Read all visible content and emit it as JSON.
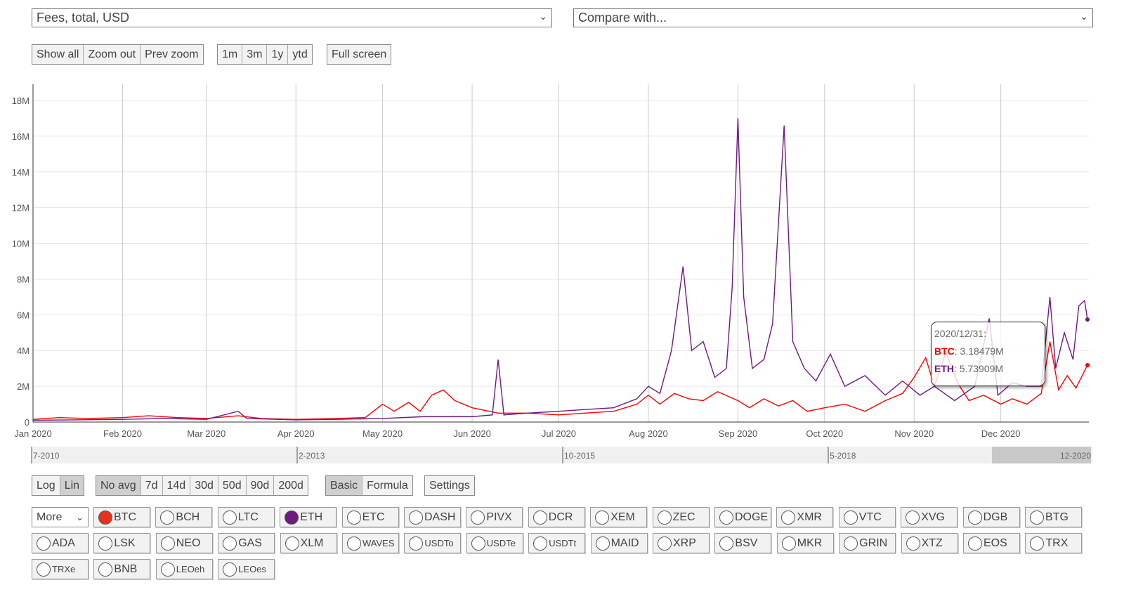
{
  "metric_select": {
    "value": "Fees, total, USD"
  },
  "compare_select": {
    "placeholder": "Compare with..."
  },
  "zoom_buttons": [
    "Show all",
    "Zoom out",
    "Prev zoom"
  ],
  "range_buttons": [
    "1m",
    "3m",
    "1y",
    "ytd"
  ],
  "fullscreen_label": "Full screen",
  "scale_buttons": [
    {
      "label": "Log",
      "active": false
    },
    {
      "label": "Lin",
      "active": true
    }
  ],
  "avg_buttons": [
    {
      "label": "No avg",
      "active": true
    },
    {
      "label": "7d"
    },
    {
      "label": "14d"
    },
    {
      "label": "30d"
    },
    {
      "label": "50d"
    },
    {
      "label": "90d"
    },
    {
      "label": "200d"
    }
  ],
  "mode_buttons": [
    {
      "label": "Basic",
      "active": true
    },
    {
      "label": "Formula"
    }
  ],
  "settings_label": "Settings",
  "more_select": "More",
  "coins": [
    [
      "BTC",
      "BCH",
      "LTC",
      "ETH",
      "ETC",
      "DASH",
      "PIVX",
      "DCR",
      "XEM",
      "ZEC",
      "DOGE",
      "XMR",
      "VTC",
      "XVG",
      "DGB",
      "BTG"
    ],
    [
      "ADA",
      "LSK",
      "NEO",
      "GAS",
      "XLM",
      "WAVES",
      "USDTo",
      "USDTe",
      "USDTt",
      "MAID",
      "XRP",
      "BSV",
      "MKR",
      "GRIN",
      "XTZ",
      "EOS",
      "TRX"
    ],
    [
      "TRXe",
      "BNB",
      "LEOeh",
      "LEOes"
    ]
  ],
  "selected_coins": {
    "BTC": "#e8321e",
    "ETH": "#6f1a7f"
  },
  "navigator": {
    "labels": [
      "7-2010",
      "2-2013",
      "10-2015",
      "5-2018",
      "12-2020"
    ]
  },
  "tooltip": {
    "date": "2020/12/31:",
    "btc_label": "BTC",
    "btc_value": ": 3.18479M",
    "eth_label": "ETH",
    "eth_value": ": 5.73909M"
  },
  "chart_data": {
    "type": "line",
    "title": "",
    "xlabel": "",
    "ylabel": "",
    "ylim": [
      0,
      18000000
    ],
    "yticks": [
      "0",
      "2M",
      "4M",
      "6M",
      "8M",
      "10M",
      "12M",
      "14M",
      "16M",
      "18M"
    ],
    "xticks": [
      "Jan 2020",
      "Feb 2020",
      "Mar 2020",
      "Apr 2020",
      "May 2020",
      "Jun 2020",
      "Jul 2020",
      "Aug 2020",
      "Sep 2020",
      "Oct 2020",
      "Nov 2020",
      "Dec 2020"
    ],
    "xlim": [
      "2020-01-01",
      "2020-12-31"
    ],
    "grid": true,
    "series": [
      {
        "name": "BTC",
        "color": "#ff0000",
        "points": [
          [
            "2020-01-01",
            0.15
          ],
          [
            "2020-01-10",
            0.25
          ],
          [
            "2020-01-20",
            0.2
          ],
          [
            "2020-02-01",
            0.25
          ],
          [
            "2020-02-10",
            0.35
          ],
          [
            "2020-02-20",
            0.25
          ],
          [
            "2020-03-01",
            0.2
          ],
          [
            "2020-03-12",
            0.35
          ],
          [
            "2020-03-20",
            0.2
          ],
          [
            "2020-04-01",
            0.15
          ],
          [
            "2020-04-15",
            0.2
          ],
          [
            "2020-04-25",
            0.25
          ],
          [
            "2020-05-01",
            1.0
          ],
          [
            "2020-05-05",
            0.6
          ],
          [
            "2020-05-10",
            1.1
          ],
          [
            "2020-05-14",
            0.6
          ],
          [
            "2020-05-18",
            1.5
          ],
          [
            "2020-05-22",
            1.8
          ],
          [
            "2020-05-26",
            1.2
          ],
          [
            "2020-06-01",
            0.8
          ],
          [
            "2020-06-10",
            0.5
          ],
          [
            "2020-06-20",
            0.5
          ],
          [
            "2020-07-01",
            0.4
          ],
          [
            "2020-07-10",
            0.5
          ],
          [
            "2020-07-20",
            0.6
          ],
          [
            "2020-07-28",
            1.0
          ],
          [
            "2020-08-01",
            1.5
          ],
          [
            "2020-08-05",
            1.0
          ],
          [
            "2020-08-10",
            1.6
          ],
          [
            "2020-08-15",
            1.3
          ],
          [
            "2020-08-20",
            1.2
          ],
          [
            "2020-08-25",
            1.7
          ],
          [
            "2020-09-01",
            1.2
          ],
          [
            "2020-09-05",
            0.8
          ],
          [
            "2020-09-10",
            1.3
          ],
          [
            "2020-09-15",
            0.9
          ],
          [
            "2020-09-20",
            1.2
          ],
          [
            "2020-09-25",
            0.6
          ],
          [
            "2020-10-01",
            0.8
          ],
          [
            "2020-10-08",
            1.0
          ],
          [
            "2020-10-15",
            0.6
          ],
          [
            "2020-10-22",
            1.2
          ],
          [
            "2020-10-28",
            1.6
          ],
          [
            "2020-11-01",
            2.5
          ],
          [
            "2020-11-05",
            3.6
          ],
          [
            "2020-11-08",
            2.0
          ],
          [
            "2020-11-12",
            3.9
          ],
          [
            "2020-11-16",
            2.2
          ],
          [
            "2020-11-20",
            1.2
          ],
          [
            "2020-11-25",
            1.5
          ],
          [
            "2020-12-01",
            1.0
          ],
          [
            "2020-12-05",
            1.3
          ],
          [
            "2020-12-10",
            1.0
          ],
          [
            "2020-12-15",
            1.6
          ],
          [
            "2020-12-18",
            4.5
          ],
          [
            "2020-12-21",
            1.8
          ],
          [
            "2020-12-24",
            2.6
          ],
          [
            "2020-12-27",
            1.9
          ],
          [
            "2020-12-31",
            3.18479
          ]
        ]
      },
      {
        "name": "ETH",
        "color": "#6f1a7f",
        "points": [
          [
            "2020-01-01",
            0.1
          ],
          [
            "2020-01-15",
            0.12
          ],
          [
            "2020-02-01",
            0.15
          ],
          [
            "2020-02-15",
            0.2
          ],
          [
            "2020-03-01",
            0.15
          ],
          [
            "2020-03-12",
            0.6
          ],
          [
            "2020-03-15",
            0.2
          ],
          [
            "2020-04-01",
            0.12
          ],
          [
            "2020-04-15",
            0.15
          ],
          [
            "2020-05-01",
            0.2
          ],
          [
            "2020-05-15",
            0.3
          ],
          [
            "2020-06-01",
            0.3
          ],
          [
            "2020-06-08",
            0.4
          ],
          [
            "2020-06-10",
            3.5
          ],
          [
            "2020-06-12",
            0.4
          ],
          [
            "2020-06-20",
            0.5
          ],
          [
            "2020-07-01",
            0.6
          ],
          [
            "2020-07-10",
            0.7
          ],
          [
            "2020-07-20",
            0.8
          ],
          [
            "2020-07-28",
            1.3
          ],
          [
            "2020-08-01",
            2.0
          ],
          [
            "2020-08-05",
            1.6
          ],
          [
            "2020-08-09",
            4.0
          ],
          [
            "2020-08-13",
            8.7
          ],
          [
            "2020-08-16",
            4.0
          ],
          [
            "2020-08-20",
            4.5
          ],
          [
            "2020-08-24",
            2.5
          ],
          [
            "2020-08-28",
            3.0
          ],
          [
            "2020-08-30",
            7.5
          ],
          [
            "2020-09-01",
            17.0
          ],
          [
            "2020-09-03",
            7.0
          ],
          [
            "2020-09-06",
            3.0
          ],
          [
            "2020-09-10",
            3.5
          ],
          [
            "2020-09-13",
            5.5
          ],
          [
            "2020-09-17",
            16.6
          ],
          [
            "2020-09-20",
            4.5
          ],
          [
            "2020-09-24",
            3.0
          ],
          [
            "2020-09-28",
            2.3
          ],
          [
            "2020-10-03",
            3.8
          ],
          [
            "2020-10-08",
            2.0
          ],
          [
            "2020-10-15",
            2.6
          ],
          [
            "2020-10-22",
            1.5
          ],
          [
            "2020-10-28",
            2.3
          ],
          [
            "2020-11-03",
            1.5
          ],
          [
            "2020-11-08",
            2.0
          ],
          [
            "2020-11-15",
            1.2
          ],
          [
            "2020-11-22",
            2.0
          ],
          [
            "2020-11-27",
            5.8
          ],
          [
            "2020-11-30",
            1.5
          ],
          [
            "2020-12-05",
            2.2
          ],
          [
            "2020-12-10",
            2.0
          ],
          [
            "2020-12-15",
            2.0
          ],
          [
            "2020-12-18",
            7.0
          ],
          [
            "2020-12-20",
            3.0
          ],
          [
            "2020-12-23",
            5.0
          ],
          [
            "2020-12-26",
            3.5
          ],
          [
            "2020-12-28",
            6.5
          ],
          [
            "2020-12-30",
            6.8
          ],
          [
            "2020-12-31",
            5.73909
          ]
        ]
      }
    ]
  }
}
